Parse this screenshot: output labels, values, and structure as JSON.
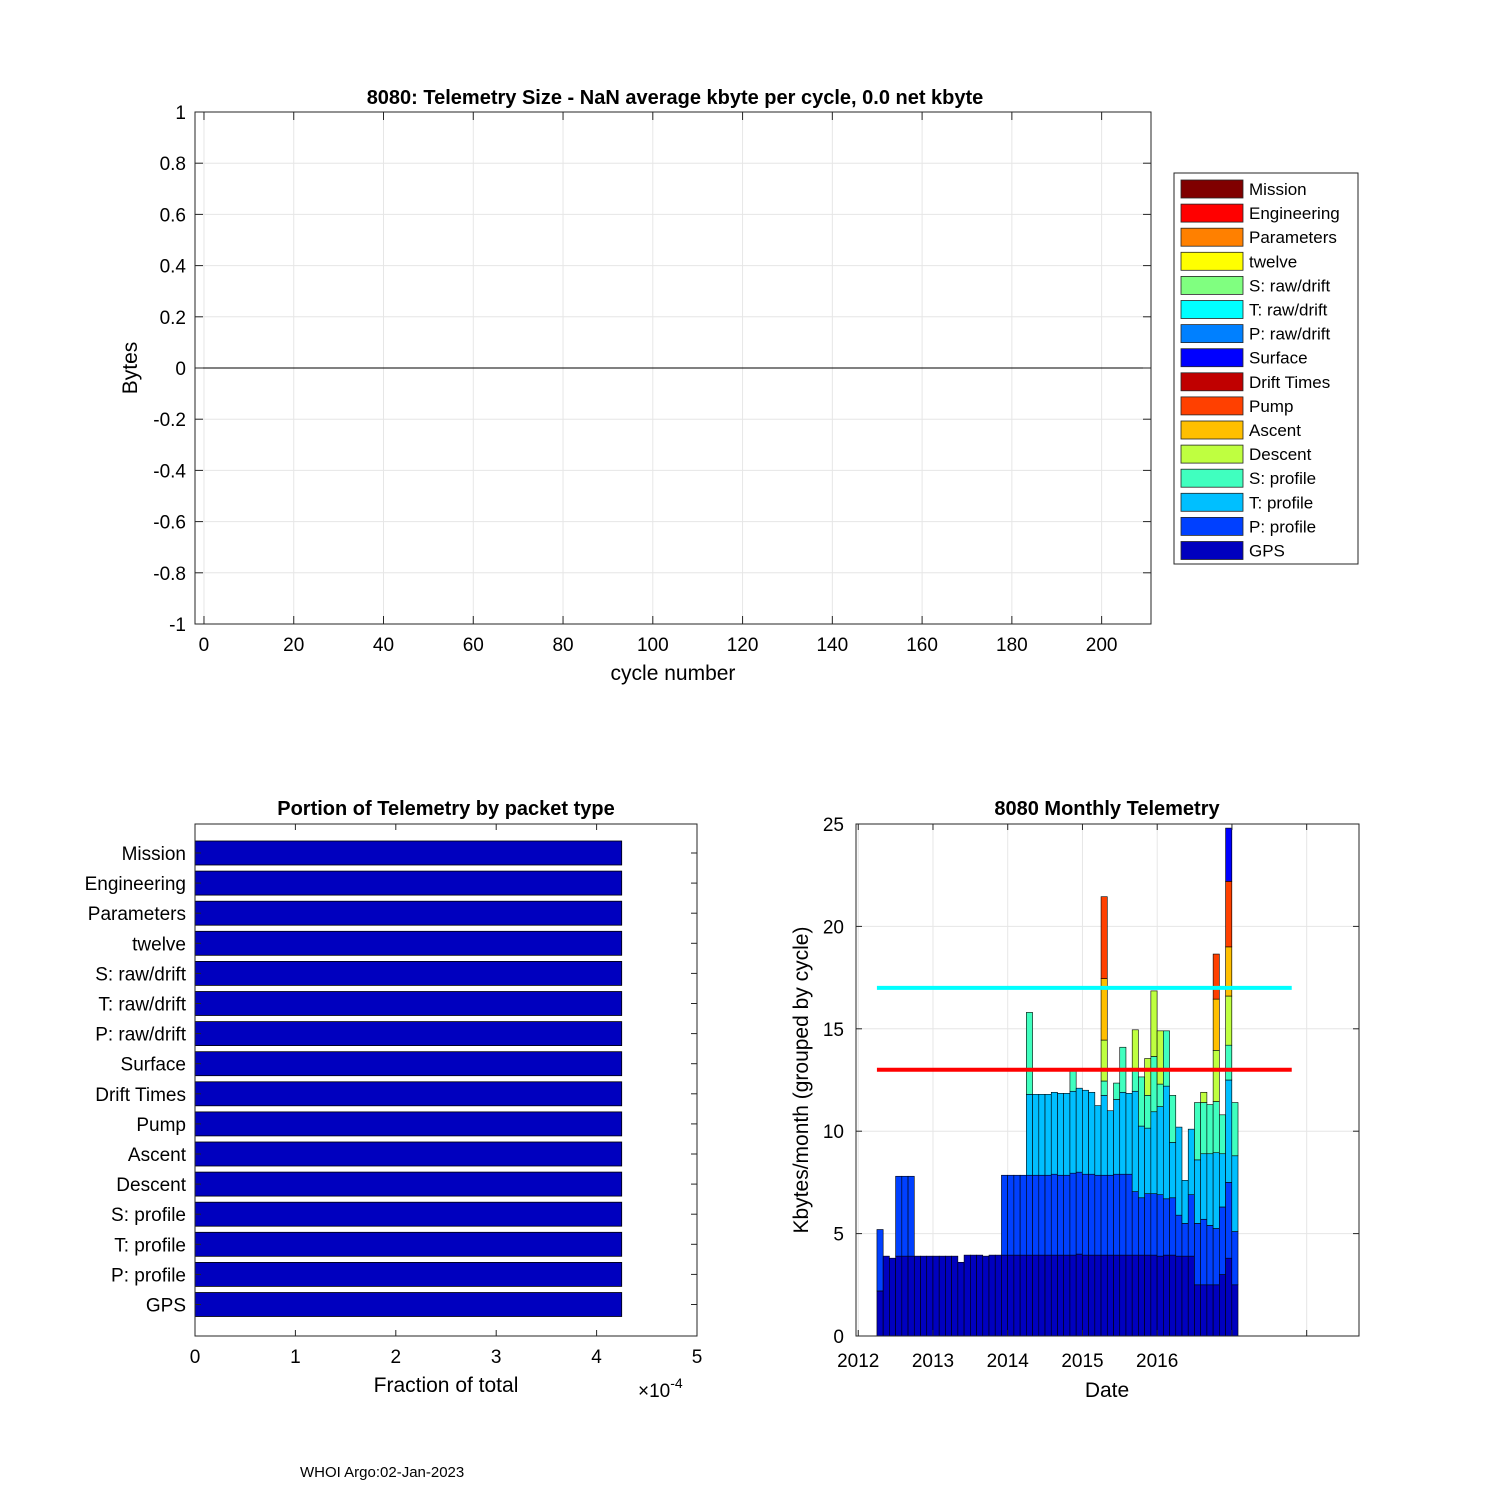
{
  "footer": "WHOI Argo:02-Jan-2023",
  "chart_data": [
    {
      "type": "line",
      "title": "8080: Telemetry Size -  NaN average kbyte per cycle,    0.0 net kbyte",
      "xlabel": "cycle number",
      "ylabel": "Bytes",
      "xlim": [
        -2,
        211
      ],
      "ylim": [
        -1,
        1
      ],
      "xticks": [
        0,
        20,
        40,
        60,
        80,
        100,
        120,
        140,
        160,
        180,
        200
      ],
      "yticks": [
        -1,
        -0.8,
        -0.6,
        -0.4,
        -0.2,
        0,
        0.2,
        0.4,
        0.6,
        0.8,
        1
      ],
      "ytick_labels": [
        "-1",
        "-0.8",
        "-0.6",
        "-0.4",
        "-0.2",
        "0",
        "0.2",
        "0.4",
        "0.6",
        "0.8",
        "1"
      ],
      "grid": true,
      "series": [
        {
          "name": "zero line",
          "x": [
            -2,
            211
          ],
          "y": [
            0,
            0
          ],
          "color": "#000000"
        }
      ],
      "legend": {
        "placement": "outside-right",
        "entries": [
          {
            "name": "Mission",
            "color": "#800000"
          },
          {
            "name": "Engineering",
            "color": "#ff0000"
          },
          {
            "name": "Parameters",
            "color": "#ff8000"
          },
          {
            "name": "twelve",
            "color": "#ffff00"
          },
          {
            "name": "S: raw/drift",
            "color": "#80ff80"
          },
          {
            "name": "T: raw/drift",
            "color": "#00ffff"
          },
          {
            "name": "P: raw/drift",
            "color": "#0080ff"
          },
          {
            "name": "Surface",
            "color": "#0000ff"
          },
          {
            "name": "Drift Times",
            "color": "#c00000"
          },
          {
            "name": "Pump",
            "color": "#ff4000"
          },
          {
            "name": "Ascent",
            "color": "#ffbf00"
          },
          {
            "name": "Descent",
            "color": "#bfff40"
          },
          {
            "name": "S: profile",
            "color": "#40ffbf"
          },
          {
            "name": "T: profile",
            "color": "#00bfff"
          },
          {
            "name": "P: profile",
            "color": "#0040ff"
          },
          {
            "name": "GPS",
            "color": "#0000bf"
          }
        ]
      }
    },
    {
      "type": "bar",
      "orientation": "horizontal",
      "title": "Portion of Telemetry by packet type",
      "xlabel": "Fraction of total",
      "exponent_label": "×10",
      "exponent": "-4",
      "xlim": [
        0,
        5
      ],
      "xticks": [
        0,
        1,
        2,
        3,
        4,
        5
      ],
      "bar_color": "#0000bf",
      "categories": [
        "Mission",
        "Engineering",
        "Parameters",
        "twelve",
        "S: raw/drift",
        "T: raw/drift",
        "P: raw/drift",
        "Surface",
        "Drift Times",
        "Pump",
        "Ascent",
        "Descent",
        "S: profile",
        "T: profile",
        "P: profile",
        "GPS"
      ],
      "values": [
        4.25,
        4.25,
        4.25,
        4.25,
        4.25,
        4.25,
        4.25,
        4.25,
        4.25,
        4.25,
        4.25,
        4.25,
        4.25,
        4.25,
        4.25,
        4.25
      ]
    },
    {
      "type": "bar",
      "stacked": true,
      "title": "8080 Monthly Telemetry",
      "xlabel": "Date",
      "ylabel": "Kbytes/month (grouped by cycle)",
      "xlim": [
        2011.97,
        2018.7
      ],
      "ylim": [
        0,
        25
      ],
      "xticks": [
        2012,
        2013,
        2014,
        2015,
        2016,
        2017,
        2018
      ],
      "xtick_labels": [
        "2012",
        "2013",
        "2014",
        "2015",
        "2016",
        "",
        ""
      ],
      "yticks": [
        0,
        5,
        10,
        15,
        20,
        25
      ],
      "grid": true,
      "months_start": 2012.25,
      "month_width": 0.0833,
      "layer_names": [
        "GPS",
        "P: profile",
        "T: profile",
        "S: profile",
        "Descent",
        "Ascent",
        "Pump",
        "Surface"
      ],
      "layer_colors": [
        "#0000bf",
        "#0040ff",
        "#00bfff",
        "#40ffbf",
        "#bfff40",
        "#ffbf00",
        "#ff4000",
        "#0000ff"
      ],
      "monthly_stacks": [
        [
          2.2,
          3.0,
          0,
          0,
          0,
          0,
          0,
          0
        ],
        [
          3.9,
          0,
          0,
          0,
          0,
          0,
          0,
          0
        ],
        [
          3.8,
          0,
          0,
          0,
          0,
          0,
          0,
          0
        ],
        [
          3.9,
          3.9,
          0,
          0,
          0,
          0,
          0,
          0
        ],
        [
          3.9,
          3.9,
          0,
          0,
          0,
          0,
          0,
          0
        ],
        [
          3.9,
          3.9,
          0,
          0,
          0,
          0,
          0,
          0
        ],
        [
          3.9,
          0,
          0,
          0,
          0,
          0,
          0,
          0
        ],
        [
          3.9,
          0,
          0,
          0,
          0,
          0,
          0,
          0
        ],
        [
          3.9,
          0,
          0,
          0,
          0,
          0,
          0,
          0
        ],
        [
          3.9,
          0,
          0,
          0,
          0,
          0,
          0,
          0
        ],
        [
          3.9,
          0,
          0,
          0,
          0,
          0,
          0,
          0
        ],
        [
          3.9,
          0,
          0,
          0,
          0,
          0,
          0,
          0
        ],
        [
          3.9,
          0,
          0,
          0,
          0,
          0,
          0,
          0
        ],
        [
          3.6,
          0,
          0,
          0,
          0,
          0,
          0,
          0
        ],
        [
          3.95,
          0,
          0,
          0,
          0,
          0,
          0,
          0
        ],
        [
          3.95,
          0,
          0,
          0,
          0,
          0,
          0,
          0
        ],
        [
          3.95,
          0,
          0,
          0,
          0,
          0,
          0,
          0
        ],
        [
          3.9,
          0,
          0,
          0,
          0,
          0,
          0,
          0
        ],
        [
          3.95,
          0,
          0,
          0,
          0,
          0,
          0,
          0
        ],
        [
          3.95,
          0,
          0,
          0,
          0,
          0,
          0,
          0
        ],
        [
          3.95,
          3.9,
          0,
          0,
          0,
          0,
          0,
          0
        ],
        [
          3.95,
          3.9,
          0,
          0,
          0,
          0,
          0,
          0
        ],
        [
          3.95,
          3.9,
          0,
          0,
          0,
          0,
          0,
          0
        ],
        [
          3.95,
          3.9,
          0,
          0,
          0,
          0,
          0,
          0
        ],
        [
          3.95,
          3.9,
          3.95,
          4.0,
          0,
          0,
          0,
          0
        ],
        [
          3.95,
          3.9,
          3.95,
          0,
          0,
          0,
          0,
          0
        ],
        [
          3.95,
          3.9,
          3.95,
          0,
          0,
          0,
          0,
          0
        ],
        [
          3.95,
          3.9,
          3.95,
          0,
          0,
          0,
          0,
          0
        ],
        [
          3.95,
          3.95,
          4.0,
          0,
          0,
          0,
          0,
          0
        ],
        [
          3.95,
          3.9,
          4.0,
          0,
          0,
          0,
          0,
          0
        ],
        [
          3.95,
          3.9,
          4.0,
          0,
          0,
          0,
          0,
          0
        ],
        [
          3.95,
          4.0,
          4.0,
          1.1,
          0,
          0,
          0,
          0
        ],
        [
          4.0,
          4.0,
          4.1,
          0,
          0,
          0,
          0,
          0
        ],
        [
          3.95,
          3.95,
          4.1,
          0,
          0,
          0,
          0,
          0
        ],
        [
          3.95,
          3.95,
          4.0,
          0,
          0,
          0,
          0,
          0
        ],
        [
          3.95,
          3.9,
          3.4,
          0,
          0,
          0,
          0,
          0
        ],
        [
          3.95,
          3.9,
          3.9,
          0.7,
          2.0,
          3.0,
          4.0,
          0
        ],
        [
          3.95,
          3.9,
          3.15,
          0,
          0,
          0,
          0,
          0
        ],
        [
          3.95,
          3.95,
          3.65,
          0.8,
          0,
          0,
          0,
          0
        ],
        [
          3.95,
          3.95,
          4.0,
          2.2,
          0,
          0,
          0,
          0
        ],
        [
          3.95,
          3.95,
          3.95,
          0,
          0,
          0,
          0,
          0
        ],
        [
          3.95,
          3.1,
          4.9,
          1.0,
          2.0,
          0,
          0,
          0
        ],
        [
          3.95,
          2.8,
          3.5,
          2.4,
          0,
          0,
          0,
          0
        ],
        [
          3.95,
          3.0,
          3.2,
          1.6,
          1.8,
          0,
          0,
          0
        ],
        [
          3.95,
          3.0,
          4.0,
          2.7,
          3.2,
          0,
          0,
          0
        ],
        [
          3.9,
          3.0,
          4.3,
          1.1,
          2.6,
          0,
          0,
          0
        ],
        [
          3.95,
          2.75,
          5.5,
          2.7,
          0,
          0,
          0,
          0
        ],
        [
          3.95,
          2.8,
          2.7,
          2.3,
          0,
          0,
          0,
          0
        ],
        [
          3.9,
          2.0,
          4.3,
          0,
          0,
          0,
          0,
          0
        ],
        [
          3.9,
          1.6,
          2.1,
          0,
          0,
          0,
          0,
          0
        ],
        [
          3.9,
          3.0,
          3.2,
          0,
          0,
          0,
          0,
          0
        ],
        [
          2.5,
          3.0,
          3.1,
          2.8,
          0,
          0,
          0,
          0
        ],
        [
          2.5,
          3.2,
          3.2,
          2.5,
          0.5,
          0,
          0,
          0
        ],
        [
          2.5,
          2.9,
          3.5,
          2.4,
          0,
          0,
          0,
          0
        ],
        [
          2.5,
          2.75,
          3.7,
          2.5,
          2.5,
          2.5,
          2.2,
          0
        ],
        [
          3.0,
          3.3,
          2.6,
          1.9,
          0,
          0,
          0,
          0
        ],
        [
          3.8,
          3.7,
          5.0,
          1.7,
          2.4,
          2.4,
          3.2,
          2.6
        ],
        [
          2.5,
          2.6,
          3.7,
          2.6,
          0,
          0,
          0,
          0
        ]
      ],
      "hlines": [
        {
          "y": 17,
          "color": "#00ffff"
        },
        {
          "y": 13,
          "color": "#ff0000"
        }
      ]
    }
  ]
}
